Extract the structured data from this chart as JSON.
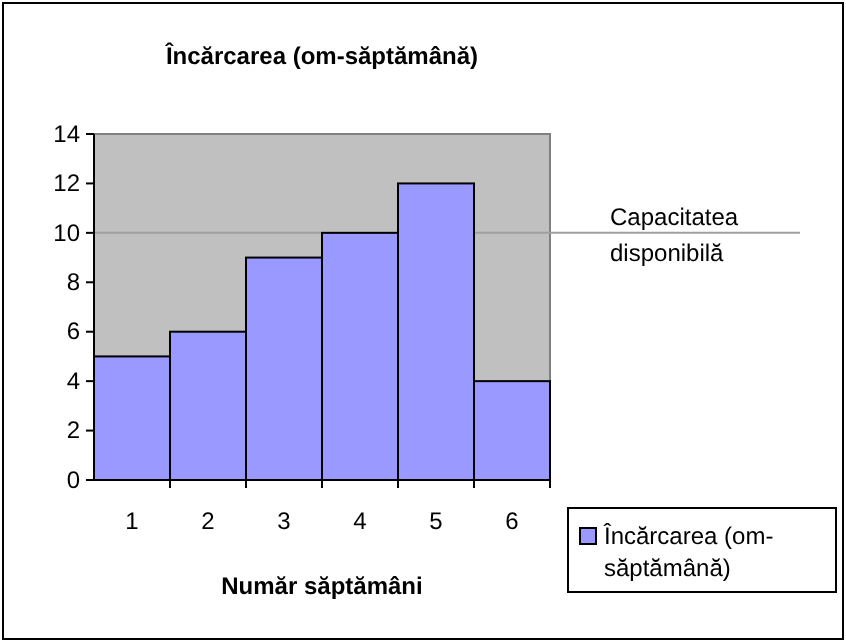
{
  "chart_data": {
    "type": "bar",
    "title": "Încărcarea (om-săptămână)",
    "xlabel": "Număr săptămâni",
    "categories": [
      "1",
      "2",
      "3",
      "4",
      "5",
      "6"
    ],
    "series": [
      {
        "name": "Încărcarea (om-săptămână)",
        "color": "#9999ff",
        "values": [
          5,
          6,
          9,
          10,
          12,
          4
        ]
      }
    ],
    "ylim": [
      0,
      14
    ],
    "yticks": [
      0,
      2,
      4,
      6,
      8,
      10,
      12,
      14
    ],
    "ref_lines": [
      {
        "axis": "y",
        "value": 10,
        "label": "Capacitatea disponibilă",
        "color": "#a0a0a0"
      }
    ],
    "legend": "bottom right",
    "grid": false
  }
}
